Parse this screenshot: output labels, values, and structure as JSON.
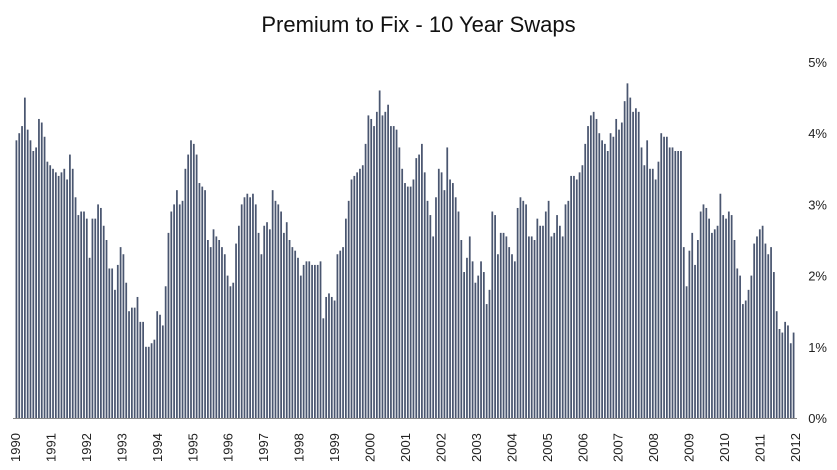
{
  "chart_data": {
    "type": "bar",
    "title": "Premium to Fix - 10 Year Swaps",
    "xlabel": "",
    "ylabel": "",
    "ylim": [
      0,
      5
    ],
    "y_ticks": [
      "0%",
      "1%",
      "2%",
      "3%",
      "4%",
      "5%"
    ],
    "y_axis_side": "right",
    "grid": false,
    "bar_color": "#4a5670",
    "x_tick_labels": [
      "1990",
      "1991",
      "1992",
      "1993",
      "1994",
      "1995",
      "1996",
      "1997",
      "1998",
      "1999",
      "2000",
      "2001",
      "2002",
      "2003",
      "2004",
      "2005",
      "2006",
      "2007",
      "2008",
      "2009",
      "2010",
      "2011",
      "2012"
    ],
    "series": [
      {
        "values": [
          3.9,
          4.0,
          4.1,
          4.5,
          4.05,
          3.9,
          3.75,
          3.8,
          4.2,
          4.15,
          3.95,
          3.6,
          3.55,
          3.5,
          3.45,
          3.4,
          3.45,
          3.5,
          3.35,
          3.7,
          3.5,
          3.1,
          2.85,
          2.9,
          2.9,
          2.8,
          2.25,
          2.8,
          2.8,
          3.0,
          2.95,
          2.7,
          2.5,
          2.1,
          2.1,
          1.8,
          2.15,
          2.4,
          2.3,
          1.9,
          1.5,
          1.55,
          1.55,
          1.7,
          1.35,
          1.35,
          1.0,
          1.0,
          1.05,
          1.1,
          1.5,
          1.45,
          1.3,
          1.85,
          2.6,
          2.9,
          3.0,
          3.2,
          3.0,
          3.05,
          3.5,
          3.7,
          3.9,
          3.85,
          3.7,
          3.3,
          3.25,
          3.2,
          2.5,
          2.4,
          2.65,
          2.55,
          2.5,
          2.4,
          2.3,
          2.0,
          1.85,
          1.9,
          2.45,
          2.7,
          3.0,
          3.1,
          3.15,
          3.1,
          3.15,
          3.0,
          2.6,
          2.3,
          2.7,
          2.75,
          2.65,
          3.2,
          3.05,
          3.0,
          2.9,
          2.6,
          2.75,
          2.5,
          2.4,
          2.35,
          2.25,
          2.0,
          2.15,
          2.2,
          2.2,
          2.15,
          2.15,
          2.15,
          2.2,
          1.4,
          1.7,
          1.75,
          1.7,
          1.65,
          2.3,
          2.35,
          2.4,
          2.8,
          3.05,
          3.35,
          3.4,
          3.45,
          3.5,
          3.55,
          3.85,
          4.25,
          4.2,
          4.1,
          4.3,
          4.6,
          4.25,
          4.3,
          4.4,
          4.1,
          4.1,
          4.05,
          3.8,
          3.5,
          3.3,
          3.25,
          3.25,
          3.35,
          3.65,
          3.7,
          3.85,
          3.45,
          3.05,
          2.85,
          2.55,
          3.1,
          3.5,
          3.45,
          3.2,
          3.8,
          3.35,
          3.3,
          3.1,
          2.9,
          2.5,
          2.05,
          2.25,
          2.55,
          2.2,
          1.9,
          2.0,
          2.2,
          2.05,
          1.6,
          1.8,
          2.9,
          2.85,
          2.3,
          2.6,
          2.6,
          2.55,
          2.4,
          2.3,
          2.2,
          2.95,
          3.1,
          3.05,
          3.0,
          2.55,
          2.55,
          2.5,
          2.8,
          2.7,
          2.7,
          2.9,
          3.05,
          2.55,
          2.6,
          2.85,
          2.7,
          2.55,
          3.0,
          3.05,
          3.4,
          3.4,
          3.35,
          3.45,
          3.55,
          3.85,
          4.1,
          4.25,
          4.3,
          4.2,
          4.0,
          3.9,
          3.85,
          3.75,
          4.0,
          3.95,
          4.2,
          4.05,
          4.15,
          4.45,
          4.7,
          4.5,
          4.3,
          4.35,
          4.3,
          3.8,
          3.55,
          3.9,
          3.5,
          3.5,
          3.35,
          3.6,
          4.0,
          3.95,
          3.95,
          3.8,
          3.8,
          3.75,
          3.75,
          3.75,
          2.4,
          1.85,
          2.35,
          2.6,
          2.15,
          2.5,
          2.9,
          3.0,
          2.95,
          2.8,
          2.6,
          2.65,
          2.7,
          3.15,
          2.85,
          2.8,
          2.9,
          2.85,
          2.5,
          2.1,
          2.0,
          1.6,
          1.65,
          1.8,
          2.0,
          2.45,
          2.55,
          2.65,
          2.7,
          2.45,
          2.3,
          2.4,
          2.05,
          1.5,
          1.25,
          1.2,
          1.35,
          1.3,
          1.05,
          1.2
        ]
      }
    ]
  }
}
